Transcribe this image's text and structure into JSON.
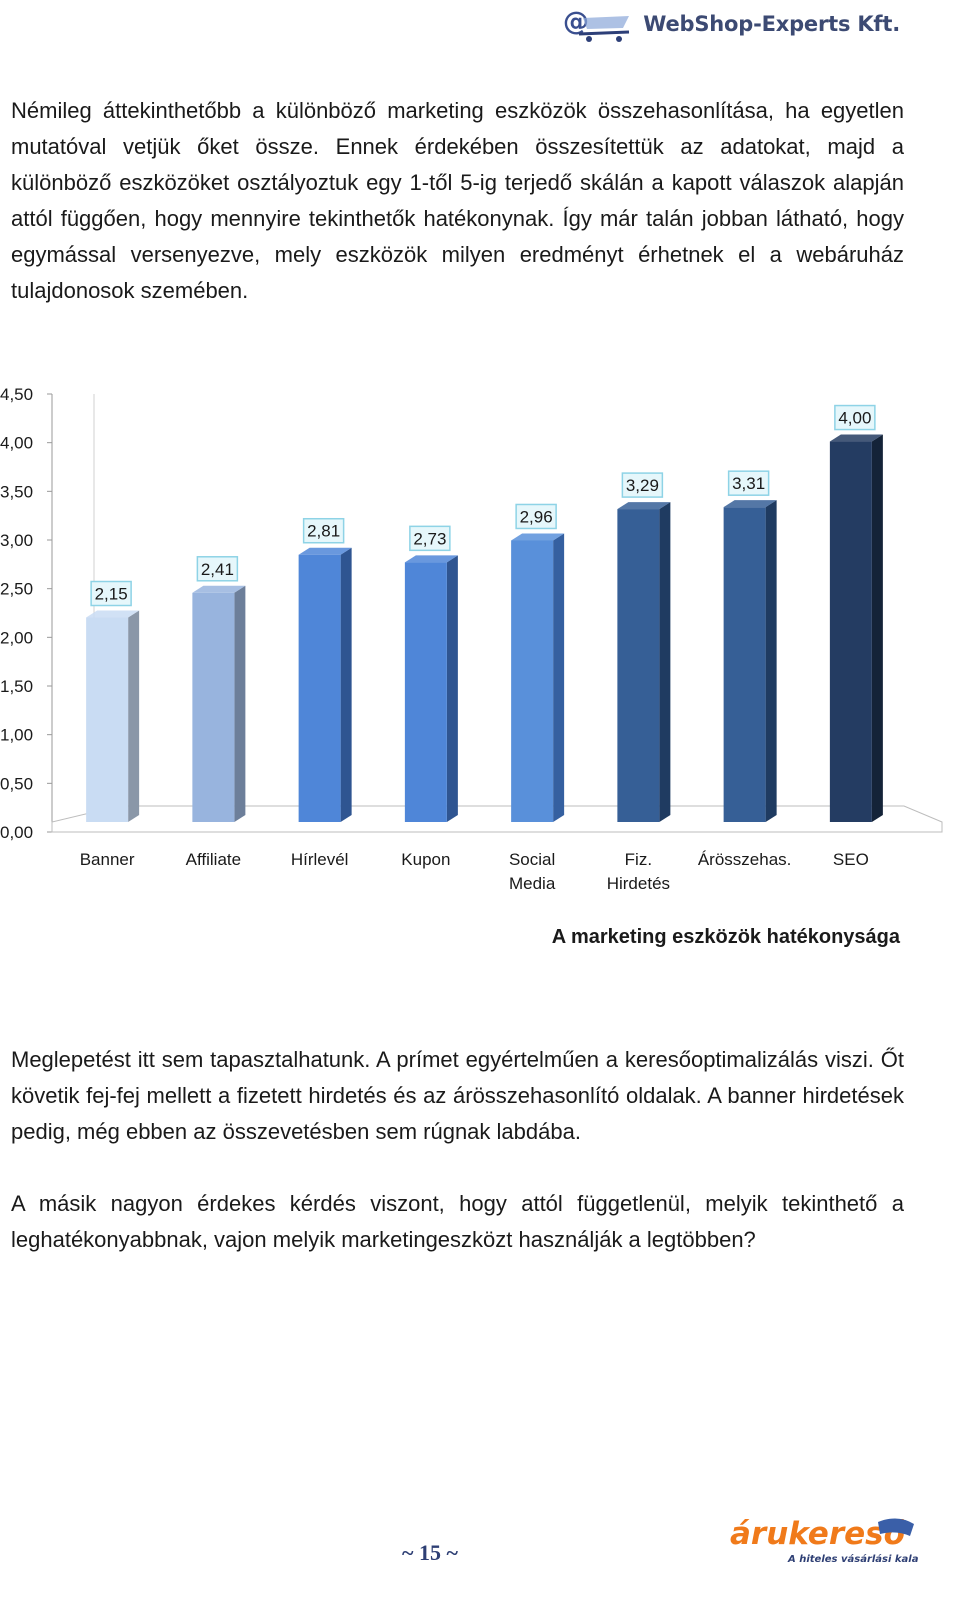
{
  "header": {
    "brand": "WebShop-Experts Kft."
  },
  "paragraphs": {
    "intro": "Némileg áttekinthetőbb a különböző marketing eszközök összehasonlítása, ha egyetlen mutatóval vetjük őket össze. Ennek érdekében összesítettük az adatokat, majd a különböző eszközöket osztályoztuk egy 1-től 5-ig terjedő skálán a kapott válaszok alapján attól függően, hogy mennyire tekinthetők hatékonynak. Így már talán jobban látható, hogy egymással versenyezve, mely eszközök milyen eredményt érhetnek el a webáruház tulajdonosok szemében.",
    "result": "Meglepetést itt sem tapasztalhatunk. A prímet egyértelműen a keresőoptimalizálás viszi. Őt követik fej-fej mellett a fizetett hirdetés és az árösszehasonlító oldalak. A banner hirdetések pedig, még ebben az összevetésben sem rúgnak labdába.",
    "question": "A másik nagyon érdekes kérdés viszont, hogy attól függetlenül, melyik tekinthető a leghatékonyabbnak, vajon melyik marketingeszközt használják a legtöbben?"
  },
  "chart_data": {
    "type": "bar",
    "categories": [
      "Banner",
      "Affiliate",
      "Hírlevél",
      "Kupon",
      "Social Media",
      "Fiz. Hirdetés",
      "Árösszehas.",
      "SEO"
    ],
    "category_lines": [
      [
        "Banner"
      ],
      [
        "Affiliate"
      ],
      [
        "Hírlevél"
      ],
      [
        "Kupon"
      ],
      [
        "Social",
        "Media"
      ],
      [
        "Fiz.",
        "Hirdetés"
      ],
      [
        "Árösszehas."
      ],
      [
        "SEO"
      ]
    ],
    "values": [
      2.15,
      2.41,
      2.81,
      2.73,
      2.96,
      3.29,
      3.31,
      4.0
    ],
    "value_labels": [
      "2,15",
      "2,41",
      "2,81",
      "2,73",
      "2,96",
      "3,29",
      "3,31",
      "4,00"
    ],
    "ylim": [
      0,
      4.5
    ],
    "y_ticks": [
      "0,00",
      "0,50",
      "1,00",
      "1,50",
      "2,00",
      "2,50",
      "3,00",
      "3,50",
      "4,00",
      "4,50"
    ],
    "bar_colors": [
      "#c9dcf3",
      "#98b4de",
      "#4f86d8",
      "#4f86d8",
      "#5990da",
      "#365f96",
      "#365f96",
      "#243c62"
    ],
    "bar_side_colors": [
      "#8a97a8",
      "#6d7f9a",
      "#2f5591",
      "#2f5591",
      "#3560a0",
      "#1f3b61",
      "#1f3b61",
      "#142338"
    ],
    "label_box_fill": "#e6f7fb",
    "label_box_border": "#8ed3e6",
    "title": "",
    "xlabel": "",
    "ylabel": "",
    "grid": false
  },
  "caption": "A marketing eszközök hatékonysága",
  "page_number": "~ 15 ~",
  "footer": {
    "brand": "árukereső",
    "tagline": "A hiteles vásárlási kalauz"
  },
  "colors": {
    "accent_navy": "#2e3f74",
    "accent_orange": "#f07a1a"
  }
}
